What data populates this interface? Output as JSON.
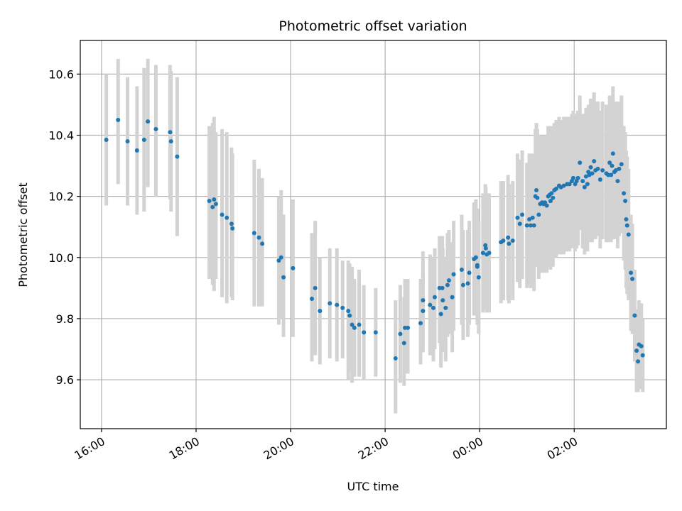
{
  "chart_data": {
    "type": "scatter",
    "title": "Photometric offset variation",
    "xlabel": "UTC time",
    "ylabel": "Photometric offset",
    "x_unit": "hours since 00:00 UTC",
    "xlim": [
      -8.45,
      3.95
    ],
    "ylim": [
      9.44,
      10.71
    ],
    "xticks": [
      {
        "value": -8,
        "label": "16:00"
      },
      {
        "value": -6,
        "label": "18:00"
      },
      {
        "value": -4,
        "label": "20:00"
      },
      {
        "value": -2,
        "label": "22:00"
      },
      {
        "value": 0,
        "label": "00:00"
      },
      {
        "value": 2,
        "label": "02:00"
      }
    ],
    "yticks": [
      {
        "value": 9.6,
        "label": "9.6"
      },
      {
        "value": 9.8,
        "label": "9.8"
      },
      {
        "value": 10.0,
        "label": "10.0"
      },
      {
        "value": 10.2,
        "label": "10.2"
      },
      {
        "value": 10.4,
        "label": "10.4"
      },
      {
        "value": 10.6,
        "label": "10.6"
      }
    ],
    "grid": true,
    "colors": {
      "points": "#1f77b4",
      "errorbars": "#d3d3d3",
      "grid": "#b0b0b0"
    },
    "series": [
      {
        "points": [
          [
            -7.9,
            10.385,
            10.17,
            10.6
          ],
          [
            -7.65,
            10.45,
            10.24,
            10.65
          ],
          [
            -7.45,
            10.38,
            10.17,
            10.59
          ],
          [
            -7.25,
            10.35,
            10.14,
            10.56
          ],
          [
            -7.1,
            10.385,
            10.15,
            10.62
          ],
          [
            -7.02,
            10.445,
            10.23,
            10.65
          ],
          [
            -6.85,
            10.42,
            10.2,
            10.63
          ],
          [
            -6.55,
            10.41,
            10.19,
            10.63
          ],
          [
            -6.53,
            10.38,
            10.15,
            10.61
          ],
          [
            -6.4,
            10.33,
            10.07,
            10.59
          ],
          [
            -5.72,
            10.185,
            9.93,
            10.43
          ],
          [
            -5.65,
            10.165,
            9.91,
            10.44
          ],
          [
            -5.62,
            10.19,
            9.89,
            10.46
          ],
          [
            -5.58,
            10.175,
            9.93,
            10.41
          ],
          [
            -5.45,
            10.14,
            9.87,
            10.42
          ],
          [
            -5.35,
            10.13,
            9.85,
            10.41
          ],
          [
            -5.25,
            10.11,
            9.87,
            10.36
          ],
          [
            -5.23,
            10.095,
            9.86,
            10.34
          ],
          [
            -4.77,
            10.08,
            9.84,
            10.32
          ],
          [
            -4.67,
            10.065,
            9.84,
            10.29
          ],
          [
            -4.6,
            10.045,
            9.84,
            10.26
          ],
          [
            -4.25,
            9.99,
            9.78,
            10.2
          ],
          [
            -4.2,
            10.0,
            9.8,
            10.22
          ],
          [
            -4.15,
            9.935,
            9.74,
            10.14
          ],
          [
            -3.95,
            9.965,
            9.74,
            10.19
          ],
          [
            -3.55,
            9.865,
            9.66,
            10.08
          ],
          [
            -3.48,
            9.9,
            9.68,
            10.12
          ],
          [
            -3.38,
            9.825,
            9.65,
            10.0
          ],
          [
            -3.17,
            9.85,
            9.67,
            10.03
          ],
          [
            -3.02,
            9.845,
            9.66,
            10.03
          ],
          [
            -2.9,
            9.835,
            9.67,
            9.99
          ],
          [
            -2.78,
            9.825,
            9.6,
            9.99
          ],
          [
            -2.75,
            9.81,
            9.63,
            9.98
          ],
          [
            -2.7,
            9.78,
            9.59,
            9.97
          ],
          [
            -2.65,
            9.77,
            9.61,
            9.93
          ],
          [
            -2.55,
            9.78,
            9.61,
            9.96
          ],
          [
            -2.45,
            9.755,
            9.6,
            9.91
          ],
          [
            -2.2,
            9.755,
            9.61,
            9.9
          ],
          [
            -1.78,
            9.67,
            9.49,
            9.86
          ],
          [
            -1.68,
            9.75,
            9.59,
            9.91
          ],
          [
            -1.6,
            9.72,
            9.58,
            9.87
          ],
          [
            -1.58,
            9.77,
            9.62,
            9.93
          ],
          [
            -1.52,
            9.77,
            9.62,
            9.93
          ],
          [
            -1.25,
            9.785,
            9.65,
            9.93
          ],
          [
            -1.2,
            9.825,
            9.7,
            9.96
          ],
          [
            -1.2,
            9.86,
            9.69,
            10.02
          ],
          [
            -1.05,
            9.845,
            9.68,
            10.01
          ],
          [
            -0.98,
            9.835,
            9.66,
            10.0
          ],
          [
            -0.95,
            9.87,
            9.7,
            10.03
          ],
          [
            -0.85,
            9.9,
            9.72,
            10.07
          ],
          [
            -0.82,
            9.815,
            9.64,
            9.99
          ],
          [
            -0.79,
            9.9,
            9.72,
            10.07
          ],
          [
            -0.78,
            9.86,
            9.69,
            10.03
          ],
          [
            -0.72,
            9.835,
            9.66,
            10.0
          ],
          [
            -0.68,
            9.91,
            9.74,
            10.08
          ],
          [
            -0.65,
            9.925,
            9.75,
            10.09
          ],
          [
            -0.58,
            9.87,
            9.69,
            10.05
          ],
          [
            -0.55,
            9.945,
            9.76,
            10.12
          ],
          [
            -0.38,
            9.96,
            9.78,
            10.14
          ],
          [
            -0.35,
            9.91,
            9.73,
            10.09
          ],
          [
            -0.25,
            9.915,
            9.74,
            10.09
          ],
          [
            -0.22,
            9.95,
            9.78,
            10.12
          ],
          [
            -0.12,
            9.995,
            9.81,
            10.18
          ],
          [
            -0.08,
            10.0,
            9.81,
            10.19
          ],
          [
            -0.05,
            9.975,
            9.79,
            10.16
          ],
          [
            -0.02,
            9.935,
            9.75,
            10.12
          ],
          [
            -0.05,
            9.97,
            9.78,
            10.16
          ],
          [
            0.07,
            10.015,
            9.82,
            10.21
          ],
          [
            0.12,
            10.04,
            9.84,
            10.24
          ],
          [
            0.13,
            10.03,
            9.83,
            10.23
          ],
          [
            0.15,
            10.01,
            9.82,
            10.2
          ],
          [
            0.2,
            10.015,
            9.82,
            10.21
          ],
          [
            0.45,
            10.05,
            9.85,
            10.25
          ],
          [
            0.5,
            10.055,
            9.86,
            10.25
          ],
          [
            0.6,
            10.065,
            9.86,
            10.27
          ],
          [
            0.62,
            10.045,
            9.85,
            10.24
          ],
          [
            0.7,
            10.055,
            9.86,
            10.25
          ],
          [
            0.8,
            10.13,
            9.92,
            10.34
          ],
          [
            0.85,
            10.11,
            9.9,
            10.32
          ],
          [
            0.9,
            10.14,
            9.93,
            10.35
          ],
          [
            1.0,
            10.105,
            9.9,
            10.31
          ],
          [
            1.05,
            10.125,
            9.91,
            10.34
          ],
          [
            1.08,
            10.105,
            9.9,
            10.31
          ],
          [
            1.12,
            10.13,
            9.92,
            10.34
          ],
          [
            1.15,
            10.105,
            9.89,
            10.32
          ],
          [
            1.18,
            10.2,
            9.98,
            10.42
          ],
          [
            1.2,
            10.22,
            10.0,
            10.44
          ],
          [
            1.22,
            10.195,
            9.97,
            10.42
          ],
          [
            1.25,
            10.14,
            9.93,
            10.35
          ],
          [
            1.28,
            10.175,
            9.95,
            10.4
          ],
          [
            1.32,
            10.18,
            9.96,
            10.4
          ],
          [
            1.35,
            10.175,
            9.95,
            10.4
          ],
          [
            1.38,
            10.18,
            9.96,
            10.4
          ],
          [
            1.42,
            10.17,
            9.95,
            10.39
          ],
          [
            1.45,
            10.2,
            9.97,
            10.43
          ],
          [
            1.48,
            10.205,
            9.98,
            10.43
          ],
          [
            1.5,
            10.185,
            9.96,
            10.41
          ],
          [
            1.52,
            10.21,
            9.99,
            10.43
          ],
          [
            1.55,
            10.195,
            9.97,
            10.42
          ],
          [
            1.58,
            10.22,
            10.0,
            10.44
          ],
          [
            1.62,
            10.225,
            10.0,
            10.45
          ],
          [
            1.68,
            10.235,
            10.01,
            10.46
          ],
          [
            1.72,
            10.23,
            10.01,
            10.45
          ],
          [
            1.78,
            10.235,
            10.01,
            10.46
          ],
          [
            1.85,
            10.24,
            10.02,
            10.46
          ],
          [
            1.9,
            10.24,
            10.02,
            10.46
          ],
          [
            1.95,
            10.25,
            10.03,
            10.47
          ],
          [
            1.98,
            10.26,
            10.04,
            10.48
          ],
          [
            2.02,
            10.24,
            10.02,
            10.46
          ],
          [
            2.05,
            10.25,
            10.03,
            10.47
          ],
          [
            2.08,
            10.26,
            10.04,
            10.48
          ],
          [
            2.12,
            10.31,
            10.09,
            10.53
          ],
          [
            2.18,
            10.25,
            10.03,
            10.47
          ],
          [
            2.22,
            10.23,
            10.01,
            10.45
          ],
          [
            2.25,
            10.265,
            10.04,
            10.49
          ],
          [
            2.28,
            10.24,
            10.02,
            10.46
          ],
          [
            2.3,
            10.28,
            10.06,
            10.5
          ],
          [
            2.32,
            10.27,
            10.05,
            10.49
          ],
          [
            2.35,
            10.295,
            10.07,
            10.52
          ],
          [
            2.38,
            10.275,
            10.05,
            10.5
          ],
          [
            2.42,
            10.315,
            10.09,
            10.54
          ],
          [
            2.45,
            10.285,
            10.06,
            10.51
          ],
          [
            2.5,
            10.29,
            10.07,
            10.51
          ],
          [
            2.55,
            10.255,
            10.03,
            10.48
          ],
          [
            2.6,
            10.285,
            10.06,
            10.51
          ],
          [
            2.68,
            10.275,
            10.05,
            10.5
          ],
          [
            2.72,
            10.27,
            10.05,
            10.49
          ],
          [
            2.75,
            10.31,
            10.09,
            10.53
          ],
          [
            2.78,
            10.27,
            10.05,
            10.49
          ],
          [
            2.8,
            10.3,
            10.08,
            10.52
          ],
          [
            2.82,
            10.34,
            10.12,
            10.56
          ],
          [
            2.85,
            10.28,
            10.06,
            10.5
          ],
          [
            2.88,
            10.285,
            10.06,
            10.51
          ],
          [
            2.92,
            10.25,
            10.03,
            10.47
          ],
          [
            2.95,
            10.29,
            10.07,
            10.51
          ],
          [
            3.0,
            10.305,
            10.08,
            10.53
          ],
          [
            3.05,
            10.21,
            9.99,
            10.43
          ],
          [
            3.08,
            10.185,
            9.96,
            10.41
          ],
          [
            3.1,
            10.125,
            9.9,
            10.35
          ],
          [
            3.12,
            10.105,
            9.88,
            10.33
          ],
          [
            3.15,
            10.075,
            9.86,
            10.29
          ],
          [
            3.2,
            9.95,
            9.76,
            10.14
          ],
          [
            3.23,
            9.93,
            9.75,
            10.11
          ],
          [
            3.28,
            9.81,
            9.66,
            9.96
          ],
          [
            3.32,
            9.695,
            9.56,
            9.83
          ],
          [
            3.35,
            9.66,
            9.56,
            9.76
          ],
          [
            3.37,
            9.715,
            9.57,
            9.86
          ],
          [
            3.42,
            9.71,
            9.57,
            9.85
          ],
          [
            3.45,
            9.68,
            9.56,
            9.8
          ]
        ]
      }
    ]
  }
}
